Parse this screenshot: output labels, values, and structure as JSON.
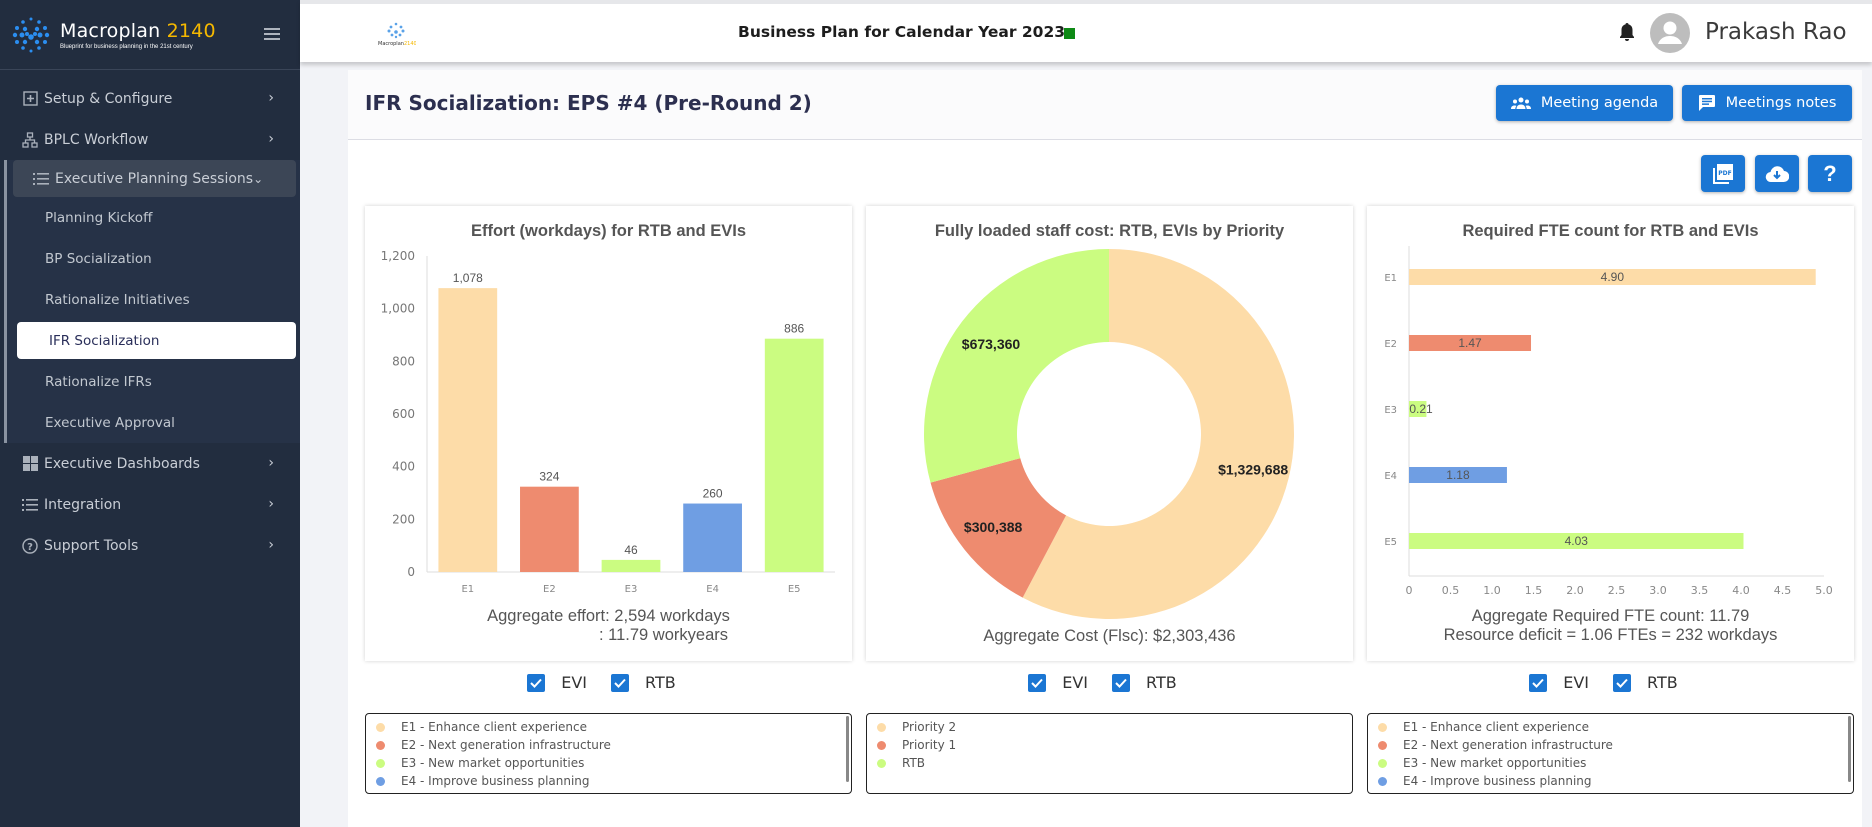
{
  "brand": {
    "name": "Macroplan",
    "year": "2140",
    "tagline": "Blueprint for business planning in the 21st century"
  },
  "sidebar": {
    "items": [
      {
        "label": "Setup & Configure",
        "icon": "plus-square-icon"
      },
      {
        "label": "BPLC Workflow",
        "icon": "sitemap-icon"
      }
    ],
    "eps": {
      "label": "Executive Planning Sessions",
      "icon": "list-icon",
      "children": [
        "Planning Kickoff",
        "BP Socialization",
        "Rationalize Initiatives",
        "IFR Socialization",
        "Rationalize IFRs",
        "Executive Approval"
      ],
      "active": "IFR Socialization"
    },
    "items_after": [
      {
        "label": "Executive Dashboards",
        "icon": "grid-icon"
      },
      {
        "label": "Integration",
        "icon": "list-icon"
      },
      {
        "label": "Support Tools",
        "icon": "help-circle-icon"
      }
    ]
  },
  "topbar": {
    "plan_title": "Business Plan for Calendar Year 2023",
    "status_color": "#0e8a16",
    "user_name": "Prakash Rao"
  },
  "page": {
    "title": "IFR Socialization: EPS #4 (Pre-Round 2)",
    "meeting_agenda": "Meeting agenda",
    "meetings_notes": "Meetings notes",
    "help_label": "?"
  },
  "toggles": {
    "evi": "EVI",
    "rtb": "RTB"
  },
  "legends": {
    "initiatives": [
      "E1 - Enhance client experience",
      "E2 - Next generation infrastructure",
      "E3 - New market opportunities",
      "E4 - Improve business planning"
    ],
    "priorities": [
      "Priority 2",
      "Priority 1",
      "RTB"
    ]
  },
  "colors": {
    "E1": "#fddca8",
    "E2": "#ee8b6f",
    "E3": "#cbfc81",
    "E4": "#6f9ee3",
    "E5": "#cbfc81",
    "accent": "#1b76d3"
  },
  "chart_data": [
    {
      "type": "bar",
      "title": "Effort (workdays) for RTB and EVIs",
      "categories": [
        "E1",
        "E2",
        "E3",
        "E4",
        "E5"
      ],
      "values": [
        1078,
        324,
        46,
        260,
        886
      ],
      "value_labels": [
        "1,078",
        "324",
        "46",
        "260",
        "886"
      ],
      "yticks": [
        "0",
        "200",
        "400",
        "600",
        "800",
        "1,000",
        "1,200"
      ],
      "ylim": [
        0,
        1200
      ],
      "footer": [
        "Aggregate effort: 2,594 workdays",
        ": 11.79 workyears"
      ]
    },
    {
      "type": "pie",
      "title": "Fully loaded staff cost: RTB, EVIs by Priority",
      "labels": [
        "Priority 2",
        "Priority 1",
        "RTB"
      ],
      "values": [
        1329688,
        300388,
        673360
      ],
      "value_labels": [
        "$1,329,688",
        "$300,388",
        "$673,360"
      ],
      "footer": [
        "Aggregate Cost (Flsc): $2,303,436"
      ]
    },
    {
      "type": "bar",
      "orientation": "horizontal",
      "title": "Required FTE count for RTB and EVIs",
      "categories": [
        "E1",
        "E2",
        "E3",
        "E4",
        "E5"
      ],
      "values": [
        4.9,
        1.47,
        0.21,
        1.18,
        4.03
      ],
      "value_labels": [
        "4.90",
        "1.47",
        "0.21",
        "1.18",
        "4.03"
      ],
      "xticks": [
        "0",
        "0.5",
        "1.0",
        "1.5",
        "2.0",
        "2.5",
        "3.0",
        "3.5",
        "4.0",
        "4.5",
        "5.0"
      ],
      "xlim": [
        0,
        5
      ],
      "footer": [
        "Aggregate Required FTE count: 11.79",
        "Resource deficit = 1.06 FTEs = 232 workdays"
      ]
    }
  ]
}
